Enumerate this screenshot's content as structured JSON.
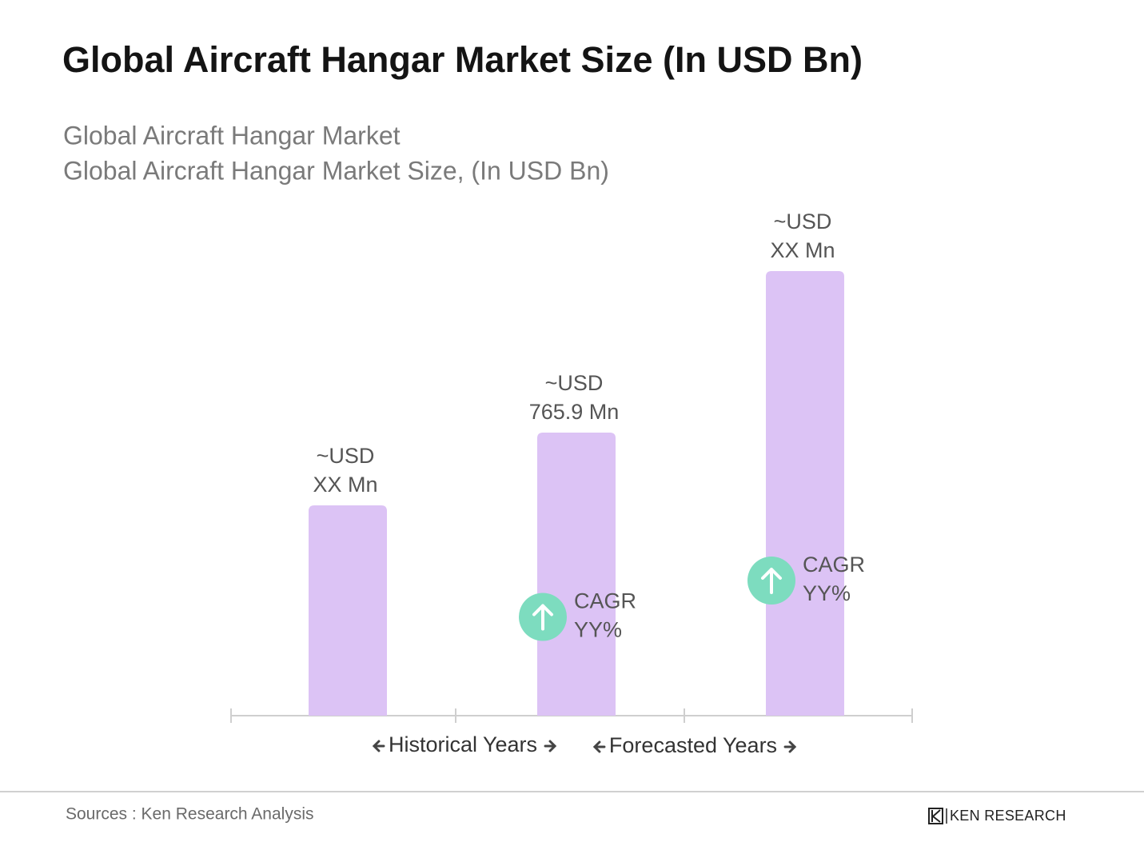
{
  "chart_data": {
    "type": "bar",
    "title": "Global Aircraft Hangar Market Size (In USD Bn)",
    "subtitle": [
      "Global Aircraft Hangar Market",
      "Global Aircraft Hangar Market Size, (In USD Bn)"
    ],
    "categories": [
      null,
      null,
      null
    ],
    "values": [
      569,
      765.9,
      1203
    ],
    "value_labels": [
      [
        "~USD",
        "XX Mn"
      ],
      [
        "~USD",
        "765.9 Mn"
      ],
      [
        "~USD",
        "XX Mn"
      ]
    ],
    "color": "#dcc3f5",
    "annotations": [
      {
        "text": [
          "CAGR",
          "YY%"
        ],
        "color": "#7ddcbf"
      },
      {
        "text": [
          "CAGR",
          "YY%"
        ],
        "color": "#7ddcbf"
      }
    ],
    "periods": [
      "Historical Years",
      "Forecasted Years"
    ],
    "source": "Sources : Ken Research Analysis"
  },
  "logo": "KEN RESEARCH"
}
